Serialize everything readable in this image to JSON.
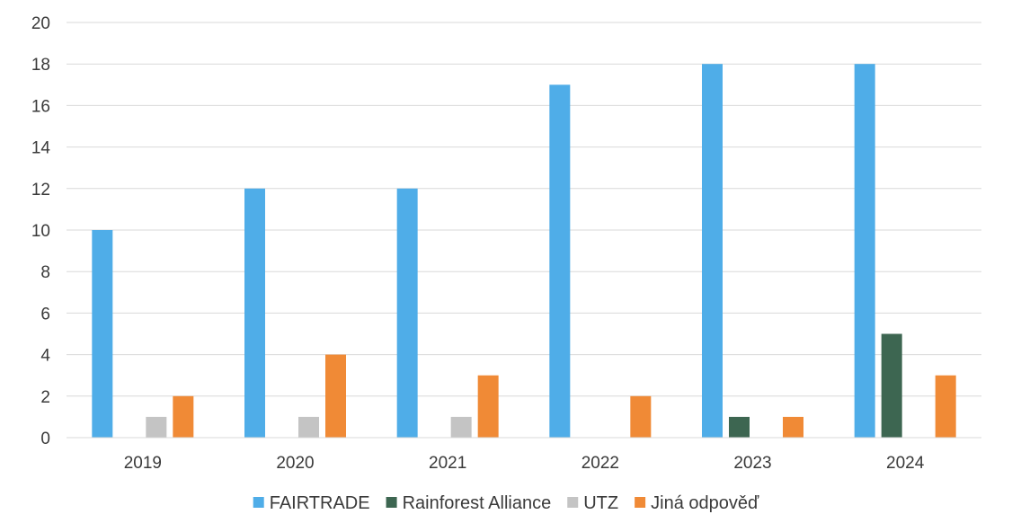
{
  "chart_data": {
    "type": "bar",
    "categories": [
      "2019",
      "2020",
      "2021",
      "2022",
      "2023",
      "2024"
    ],
    "series": [
      {
        "name": "FAIRTRADE",
        "color": "#4FADE8",
        "values": [
          10,
          12,
          12,
          17,
          18,
          18
        ]
      },
      {
        "name": "Rainforest Alliance",
        "color": "#3D6651",
        "values": [
          0,
          0,
          0,
          0,
          1,
          5
        ]
      },
      {
        "name": "UTZ",
        "color": "#C4C4C4",
        "values": [
          1,
          1,
          1,
          0,
          0,
          0
        ]
      },
      {
        "name": "Jiná odpověď",
        "color": "#F08A36",
        "values": [
          2,
          4,
          3,
          2,
          1,
          3
        ]
      }
    ],
    "ylim": [
      0,
      20
    ],
    "yticks": [
      0,
      2,
      4,
      6,
      8,
      10,
      12,
      14,
      16,
      18,
      20
    ],
    "grid": true,
    "legend_position": "bottom"
  }
}
